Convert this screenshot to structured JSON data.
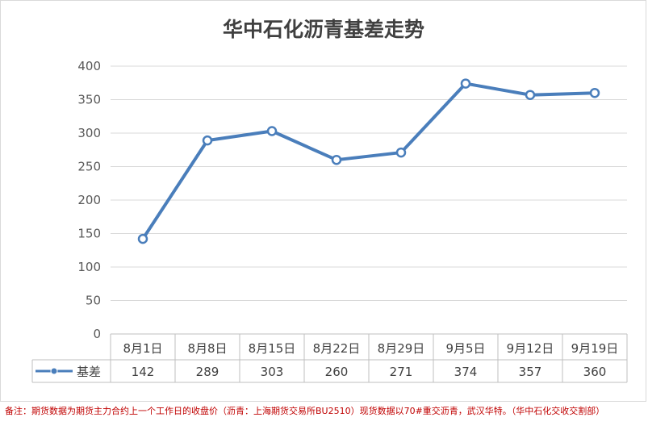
{
  "chart_data": {
    "type": "line",
    "title": "华中石化沥青基差走势",
    "categories": [
      "8月1日",
      "8月8日",
      "8月15日",
      "8月22日",
      "8月29日",
      "9月5日",
      "9月12日",
      "9月19日"
    ],
    "series": [
      {
        "name": "基差",
        "values": [
          142,
          289,
          303,
          260,
          271,
          374,
          357,
          360
        ],
        "color": "#4a7ebb"
      }
    ],
    "ylim": [
      0,
      400
    ],
    "yticks": [
      0,
      50,
      100,
      150,
      200,
      250,
      300,
      350,
      400
    ],
    "grid": true,
    "data_table": true
  },
  "note": "备注：期货数据为期货主力合约上一个工作日的收盘价（沥青：上海期货交易所BU2510）现货数据以70#重交沥青，武汉华特。（华中石化交收交割部）"
}
